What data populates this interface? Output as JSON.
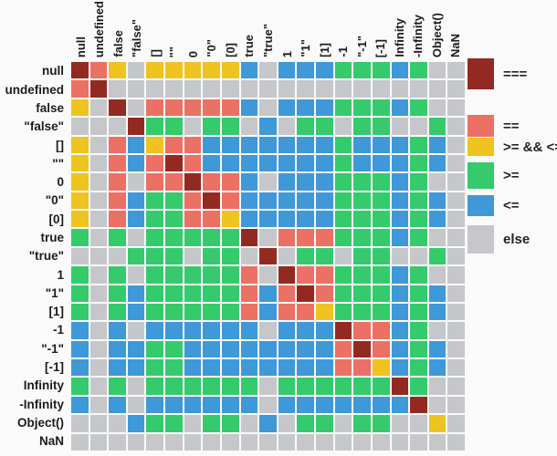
{
  "matrix": {
    "labels": [
      "null",
      "undefined",
      "false",
      "\"false\"",
      "[]",
      "\"\"",
      "0",
      "\"0\"",
      "[0]",
      "true",
      "\"true\"",
      "1",
      "\"1\"",
      "[1]",
      "-1",
      "\"-1\"",
      "[-1]",
      "Infinity",
      "-Infinity",
      "Object()",
      "NaN"
    ],
    "cells": [
      "RSYEYYYYYBEBBBGGGBGEE",
      "SREEEEEEEEEEEEEEEEEEE",
      "YERESSSSSBEBBBGGGBGEE",
      "EEERGGEGGEBEGGEGGEEGE",
      "YESBYSSBBBBBBBGBBBGBE",
      "YESBSRSBBBBBBBGBBBGBE",
      "YESESSRSSBEBBBGGGBGEE",
      "YESBGGSRSBBBBBGGGBGBE",
      "YESBGGSSYBBBBBGGGBGBE",
      "GEGEGGGGGRESSSGGGBGEE",
      "EEEGGGEGGEREGGEGGEEGE",
      "GEGEGGGGGSERSSGGGBGEE",
      "GEGBGGGGGSBSRSGGGBGBE",
      "GEGBGGGGGSBSSYGGGBGBE",
      "BEBEBBBBBBEBBBRSSBGEE",
      "BEBBGGBBBBBBBBSRSBGBE",
      "BEBBGGBBBBBBBBSSYBGBE",
      "GEGEGGGGGGEGGGGGGRGEE",
      "BEBEBBBBBBEBBBBBBBREE",
      "EEEBGGEGGEBEGGEGGEEYE",
      "EEEEEEEEEEEEEEEEEEEEE"
    ]
  },
  "legend": {
    "items": [
      {
        "key": "R",
        "label": "===",
        "color": "#932a22"
      },
      {
        "key": "S",
        "label": "==",
        "color": "#ea7163"
      },
      {
        "key": "Y",
        "label": ">= && <=",
        "color": "#efc320"
      },
      {
        "key": "G",
        "label": ">=",
        "color": "#35ca6b"
      },
      {
        "key": "B",
        "label": "<=",
        "color": "#3f98d8"
      },
      {
        "key": "E",
        "label": "else",
        "color": "#c5c7ca"
      }
    ]
  },
  "chart_data": {
    "type": "heatmap",
    "x_categories": [
      "null",
      "undefined",
      "false",
      "\"false\"",
      "[]",
      "\"\"",
      "0",
      "\"0\"",
      "[0]",
      "true",
      "\"true\"",
      "1",
      "\"1\"",
      "[1]",
      "-1",
      "\"-1\"",
      "[-1]",
      "Infinity",
      "-Infinity",
      "Object()",
      "NaN"
    ],
    "y_categories": [
      "null",
      "undefined",
      "false",
      "\"false\"",
      "[]",
      "\"\"",
      "0",
      "\"0\"",
      "[0]",
      "true",
      "\"true\"",
      "1",
      "\"1\"",
      "[1]",
      "-1",
      "\"-1\"",
      "[-1]",
      "Infinity",
      "-Infinity",
      "Object()",
      "NaN"
    ],
    "cell_encoding": {
      "R": "===",
      "S": "==",
      "Y": ">= && <=",
      "G": ">=",
      "B": "<=",
      "E": "else"
    },
    "cell_colors": {
      "R": "#932a22",
      "S": "#ea7163",
      "Y": "#efc320",
      "G": "#35ca6b",
      "B": "#3f98d8",
      "E": "#c5c7ca"
    },
    "rows": [
      "RSYEYYYYYBEBBBGGGBGEE",
      "SREEEEEEEEEEEEEEEEEEE",
      "YERESSSSSBEBBBGGGBGEE",
      "EEERGGEGGEBEGGEGGEEGE",
      "YESBYSSBBBBBBBGBBBGBE",
      "YESBSRSBBBBBBBGBBBGBE",
      "YESESSRSSBEBBBGGGBGEE",
      "YESBGGSRSBBBBBGGGBGBE",
      "YESBGGSSYBBBBBGGGBGBE",
      "GEGEGGGGGRESSSGGGBGEE",
      "EEEGGGEGGEREGGEGGEEGE",
      "GEGEGGGGGSERSSGGGBGEE",
      "GEGBGGGGGSBSRSGGGBGBE",
      "GEGBGGGGGSBSSYGGGBGBE",
      "BEBEBBBBBBEBBBRSSBGEE",
      "BEBBGGBBBBBBBBSRSBGBE",
      "BEBBGGBBBBBBBBSSYBGBE",
      "GEGEGGGGGGEGGGGGGRGEE",
      "BEBEBBBBBBEBBBBBBBREE",
      "EEEBGGEGGEBEGGEGGEEYE",
      "EEEEEEEEEEEEEEEEEEEEE"
    ],
    "legend_entries": [
      "===",
      "==",
      ">= && <=",
      ">=",
      "<=",
      "else"
    ],
    "legend_position": "right",
    "x_label_rotation": -90,
    "grid": "2px white gaps between cells"
  }
}
